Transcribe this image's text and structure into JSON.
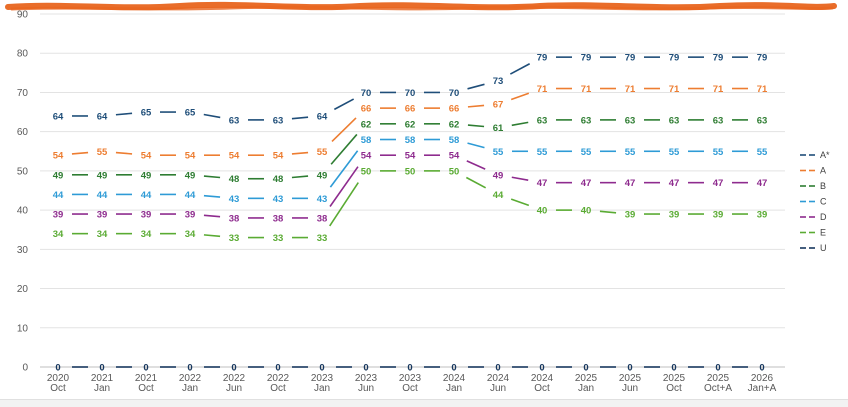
{
  "chart_data": {
    "type": "line",
    "categories": [
      [
        "2020",
        "Oct"
      ],
      [
        "2021",
        "Jan"
      ],
      [
        "2021",
        "Oct"
      ],
      [
        "2022",
        "Jan"
      ],
      [
        "2022",
        "Jun"
      ],
      [
        "2022",
        "Oct"
      ],
      [
        "2023",
        "Jan"
      ],
      [
        "2023",
        "Jun"
      ],
      [
        "2023",
        "Oct"
      ],
      [
        "2024",
        "Jan"
      ],
      [
        "2024",
        "Jun"
      ],
      [
        "2024",
        "Oct"
      ],
      [
        "2025",
        "Jan"
      ],
      [
        "2025",
        "Jun"
      ],
      [
        "2025",
        "Oct"
      ],
      [
        "2025",
        "Oct+A"
      ],
      [
        "2026",
        "Jan+A"
      ]
    ],
    "ylim": [
      0,
      90
    ],
    "yticks": [
      0,
      10,
      20,
      30,
      40,
      50,
      60,
      70,
      80,
      90
    ],
    "grid": true,
    "legend_position": "right",
    "series": [
      {
        "name": "A*",
        "color": "#1f4e79",
        "values": [
          64,
          64,
          65,
          65,
          63,
          63,
          64,
          70,
          70,
          70,
          73,
          79,
          79,
          79,
          79,
          79,
          79
        ]
      },
      {
        "name": "A",
        "color": "#ed7d31",
        "values": [
          54,
          55,
          54,
          54,
          54,
          54,
          55,
          66,
          66,
          66,
          67,
          71,
          71,
          71,
          71,
          71,
          71
        ]
      },
      {
        "name": "B",
        "color": "#2e7d32",
        "values": [
          49,
          49,
          49,
          49,
          48,
          48,
          49,
          62,
          62,
          62,
          61,
          63,
          63,
          63,
          63,
          63,
          63
        ]
      },
      {
        "name": "C",
        "color": "#2e9bd6",
        "values": [
          44,
          44,
          44,
          44,
          43,
          43,
          43,
          58,
          58,
          58,
          55,
          55,
          55,
          55,
          55,
          55,
          55
        ]
      },
      {
        "name": "D",
        "color": "#8e2b8e",
        "values": [
          39,
          39,
          39,
          39,
          38,
          38,
          38,
          54,
          54,
          54,
          49,
          47,
          47,
          47,
          47,
          47,
          47
        ]
      },
      {
        "name": "E",
        "color": "#5aab33",
        "values": [
          34,
          34,
          34,
          34,
          33,
          33,
          33,
          50,
          50,
          50,
          44,
          40,
          40,
          39,
          39,
          39,
          39
        ]
      },
      {
        "name": "U",
        "color": "#17375e",
        "values": [
          0,
          0,
          0,
          0,
          0,
          0,
          0,
          0,
          0,
          0,
          0,
          0,
          0,
          0,
          0,
          0,
          0
        ]
      }
    ]
  }
}
